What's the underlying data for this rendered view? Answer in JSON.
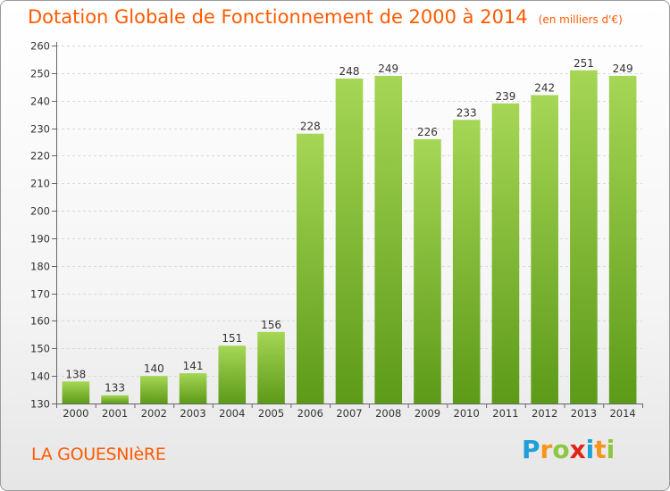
{
  "header": {
    "title": "Dotation Globale de Fonctionnement de 2000 à 2014",
    "unit": "(en milliers d'€)"
  },
  "commune": "LA GOUESNIèRE",
  "logo": {
    "letters": [
      "P",
      "r",
      "o",
      "x",
      "i",
      "t",
      "i"
    ],
    "colors": [
      "#1f9fd8",
      "#f7941d",
      "#8dc63f",
      "#e2231a",
      "#1f9fd8",
      "#f7941d",
      "#8dc63f"
    ]
  },
  "colors": {
    "bar_top": "#a6d655",
    "bar_bottom": "#5c9a18",
    "accent": "#ff5a00"
  },
  "chart_data": {
    "type": "bar",
    "title": "Dotation Globale de Fonctionnement de 2000 à 2014",
    "subtitle": "(en milliers d'€)",
    "categories": [
      "2000",
      "2001",
      "2002",
      "2003",
      "2004",
      "2005",
      "2006",
      "2007",
      "2008",
      "2009",
      "2010",
      "2011",
      "2012",
      "2013",
      "2014"
    ],
    "values": [
      138,
      133,
      140,
      141,
      151,
      156,
      228,
      248,
      249,
      226,
      233,
      239,
      242,
      251,
      249
    ],
    "ylim": [
      130,
      260
    ],
    "yticks": [
      130,
      140,
      150,
      160,
      170,
      180,
      190,
      200,
      210,
      220,
      230,
      240,
      250,
      260
    ],
    "grid": true,
    "data_labels": true
  }
}
